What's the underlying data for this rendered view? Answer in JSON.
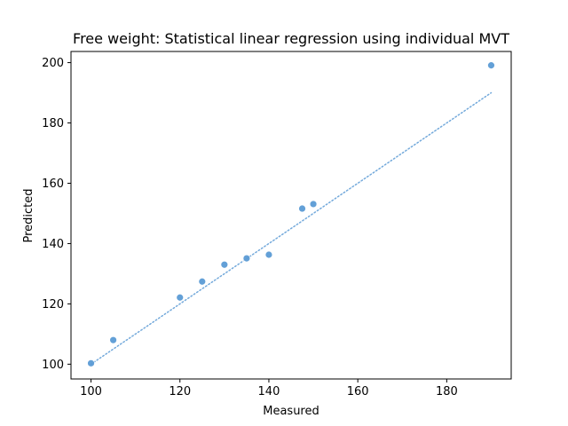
{
  "chart_data": {
    "type": "scatter",
    "title": "Free weight: Statistical linear regression using individual MVT",
    "xlabel": "Measured",
    "ylabel": "Predicted",
    "xlim": [
      95.5,
      194.5
    ],
    "ylim": [
      95.1,
      203.7
    ],
    "xticks": [
      100,
      120,
      140,
      160,
      180
    ],
    "yticks": [
      100,
      120,
      140,
      160,
      180,
      200
    ],
    "grid": false,
    "points": {
      "x": [
        100,
        105,
        120,
        125,
        130,
        135,
        140,
        147.5,
        150,
        190
      ],
      "y": [
        100.3,
        108.0,
        122.1,
        127.4,
        133.0,
        135.1,
        136.3,
        151.6,
        153.1,
        199.1
      ],
      "color": "#5b9bd5"
    },
    "identity_line": {
      "x": [
        100,
        190
      ],
      "y": [
        100,
        190
      ],
      "style": "dotted",
      "color": "#5b9bd5"
    }
  }
}
